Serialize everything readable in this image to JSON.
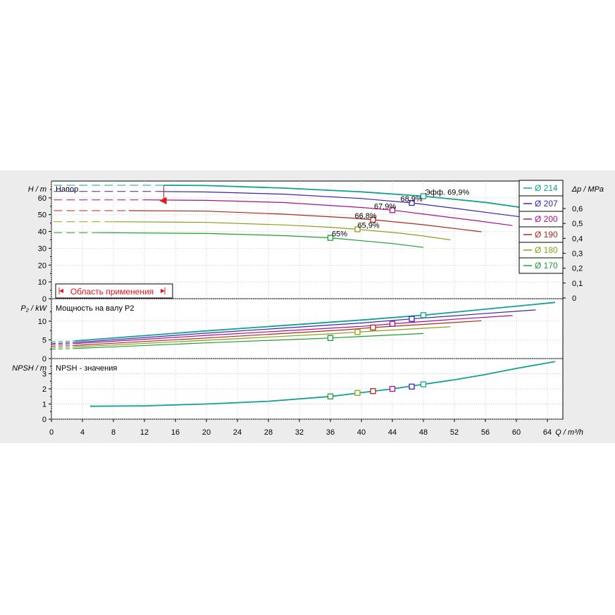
{
  "chart_data": [
    {
      "type": "line",
      "title": "Напор",
      "ylabel_left": "H / m",
      "ylabel_right": "Δp / MPa",
      "xlim": [
        0,
        66
      ],
      "ylim": [
        0,
        70
      ],
      "yticks": [
        0,
        10,
        20,
        30,
        40,
        50,
        60
      ],
      "yticks_right": [
        "0",
        "0,1",
        "0,2",
        "0,3",
        "0,4",
        "0,5",
        "0,6"
      ],
      "series": [
        {
          "name": "Ø 214",
          "color": "#12a090",
          "x": [
            14.5,
            20,
            30,
            40,
            48,
            56,
            62,
            65
          ],
          "y": [
            67.5,
            67.3,
            65.8,
            63.6,
            61.0,
            57.3,
            53.4,
            51.5
          ],
          "dashed_to": 14.5
        },
        {
          "name": "Ø 207",
          "color": "#3a22b8",
          "x": [
            14,
            20,
            30,
            40,
            46.5,
            52,
            58,
            62.5
          ],
          "y": [
            63.8,
            63.5,
            62.2,
            59.6,
            57.0,
            53.8,
            50.2,
            47.5
          ],
          "dashed_to": 14
        },
        {
          "name": "Ø 200",
          "color": "#a8108a",
          "x": [
            12,
            20,
            30,
            40,
            44,
            50,
            55,
            59.5
          ],
          "y": [
            58.8,
            58.5,
            57.2,
            54.3,
            52.7,
            49.2,
            46.3,
            43.5
          ],
          "dashed_to": 12
        },
        {
          "name": "Ø 190",
          "color": "#b02818",
          "x": [
            10,
            20,
            30,
            38,
            41.5,
            48,
            52,
            55.5
          ],
          "y": [
            52.4,
            52.1,
            50.3,
            48.2,
            47.0,
            44.0,
            41.8,
            39.8
          ],
          "dashed_to": 10
        },
        {
          "name": "Ø 180",
          "color": "#8aa018",
          "x": [
            8,
            20,
            30,
            36,
            39.5,
            45,
            48,
            51.5
          ],
          "y": [
            45.8,
            45.4,
            43.9,
            42.5,
            41.3,
            39.0,
            37.3,
            35.0
          ],
          "dashed_to": 8
        },
        {
          "name": "Ø 170",
          "color": "#1aa030",
          "x": [
            6,
            20,
            30,
            36,
            40,
            44,
            48
          ],
          "y": [
            39.3,
            38.8,
            37.5,
            36.2,
            34.5,
            32.8,
            30.5
          ],
          "dashed_to": 6
        }
      ],
      "markers": [
        {
          "series": "Ø 214",
          "x": 48,
          "y": 61.0,
          "label": "Эфф.  69,9%"
        },
        {
          "series": "Ø 207",
          "x": 46.5,
          "y": 57.0,
          "label": "68,9%"
        },
        {
          "series": "Ø 200",
          "x": 44,
          "y": 52.7,
          "label": "67,9%"
        },
        {
          "series": "Ø 190",
          "x": 41.5,
          "y": 47.0,
          "label": "66,8%"
        },
        {
          "series": "Ø 180",
          "x": 39.5,
          "y": 41.3,
          "label": "65,9%"
        },
        {
          "series": "Ø 170",
          "x": 36,
          "y": 36.2,
          "label": "65%"
        }
      ],
      "application_range_label": "Область применения",
      "application_range": {
        "q_min": 14.5,
        "q_max": 65
      }
    },
    {
      "type": "line",
      "title": "Мощность на валу P2",
      "ylabel_left": "P₂ / kW",
      "ylim": [
        0,
        16
      ],
      "yticks": [
        0,
        5,
        10
      ],
      "series": [
        {
          "name": "Ø 214",
          "color": "#12a090",
          "x": [
            0,
            3,
            20,
            40,
            48,
            56,
            65
          ],
          "y": [
            4.4,
            4.7,
            7.4,
            10.3,
            11.6,
            13.2,
            15.0
          ]
        },
        {
          "name": "Ø 207",
          "color": "#3a22b8",
          "x": [
            0,
            3,
            20,
            40,
            46.5,
            55,
            62.5
          ],
          "y": [
            4.0,
            4.3,
            6.8,
            9.5,
            10.6,
            11.9,
            13.0
          ]
        },
        {
          "name": "Ø 200",
          "color": "#a8108a",
          "x": [
            0,
            3,
            20,
            40,
            44,
            52,
            59.5
          ],
          "y": [
            3.7,
            4.0,
            6.2,
            8.6,
            9.3,
            10.5,
            11.5
          ]
        },
        {
          "name": "Ø 190",
          "color": "#b02818",
          "x": [
            0,
            3,
            20,
            38,
            41.5,
            50,
            55.5
          ],
          "y": [
            3.3,
            3.5,
            5.5,
            7.7,
            8.3,
            9.4,
            10.1
          ]
        },
        {
          "name": "Ø 180",
          "color": "#8aa018",
          "x": [
            0,
            3,
            20,
            36,
            39.5,
            48,
            51.5
          ],
          "y": [
            2.9,
            3.1,
            4.9,
            6.6,
            7.1,
            8.1,
            8.5
          ]
        },
        {
          "name": "Ø 170",
          "color": "#1aa030",
          "x": [
            0,
            3,
            20,
            36,
            44,
            48
          ],
          "y": [
            2.5,
            2.7,
            4.2,
            5.5,
            6.3,
            6.7
          ]
        }
      ],
      "markers": [
        {
          "series": "Ø 214",
          "x": 48,
          "y": 11.6
        },
        {
          "series": "Ø 207",
          "x": 46.5,
          "y": 10.6
        },
        {
          "series": "Ø 200",
          "x": 44,
          "y": 9.3
        },
        {
          "series": "Ø 190",
          "x": 41.5,
          "y": 8.3
        },
        {
          "series": "Ø 180",
          "x": 39.5,
          "y": 7.1
        },
        {
          "series": "Ø 170",
          "x": 36,
          "y": 5.5
        }
      ]
    },
    {
      "type": "line",
      "title": "NPSH - значения",
      "ylabel_left": "NPSH / m",
      "xlabel": "Q / m³/h",
      "ylim": [
        0,
        4
      ],
      "yticks": [
        0,
        1,
        2,
        3
      ],
      "xticks": [
        0,
        4,
        8,
        12,
        16,
        20,
        24,
        28,
        32,
        36,
        40,
        44,
        48,
        52,
        56,
        60,
        64
      ],
      "series": [
        {
          "name": "NPSH",
          "color": "#12a090",
          "x": [
            5,
            12,
            20,
            28,
            36,
            40,
            44,
            48,
            52,
            56,
            60,
            65
          ],
          "y": [
            0.85,
            0.88,
            1.0,
            1.18,
            1.5,
            1.75,
            2.0,
            2.3,
            2.6,
            2.95,
            3.35,
            3.8
          ]
        }
      ],
      "markers": [
        {
          "x": 36,
          "y": 1.5,
          "color": "#1aa030"
        },
        {
          "x": 39.5,
          "y": 1.73,
          "color": "#8aa018"
        },
        {
          "x": 41.5,
          "y": 1.85,
          "color": "#b02818"
        },
        {
          "x": 44,
          "y": 2.0,
          "color": "#a8108a"
        },
        {
          "x": 46.5,
          "y": 2.15,
          "color": "#3a22b8"
        },
        {
          "x": 48,
          "y": 2.3,
          "color": "#12a090"
        }
      ]
    }
  ]
}
